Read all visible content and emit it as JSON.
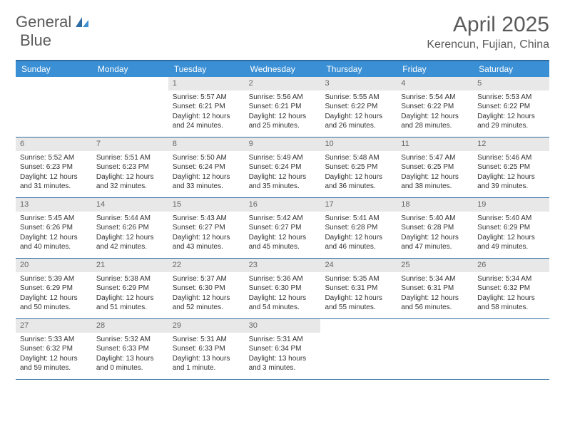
{
  "brand": {
    "word1": "General",
    "word2": "Blue"
  },
  "title": "April 2025",
  "location": "Kerencun, Fujian, China",
  "colors": {
    "header_bg": "#3b8fd4",
    "header_text": "#ffffff",
    "border": "#2d6ca2",
    "daynum_bg": "#e8e8e8",
    "daynum_text": "#666666",
    "body_text": "#333333",
    "title_text": "#5a5a5a",
    "brand_blue": "#3b7fc4"
  },
  "day_names": [
    "Sunday",
    "Monday",
    "Tuesday",
    "Wednesday",
    "Thursday",
    "Friday",
    "Saturday"
  ],
  "weeks": [
    [
      {
        "empty": true
      },
      {
        "empty": true
      },
      {
        "n": "1",
        "sunrise": "Sunrise: 5:57 AM",
        "sunset": "Sunset: 6:21 PM",
        "day1": "Daylight: 12 hours",
        "day2": "and 24 minutes."
      },
      {
        "n": "2",
        "sunrise": "Sunrise: 5:56 AM",
        "sunset": "Sunset: 6:21 PM",
        "day1": "Daylight: 12 hours",
        "day2": "and 25 minutes."
      },
      {
        "n": "3",
        "sunrise": "Sunrise: 5:55 AM",
        "sunset": "Sunset: 6:22 PM",
        "day1": "Daylight: 12 hours",
        "day2": "and 26 minutes."
      },
      {
        "n": "4",
        "sunrise": "Sunrise: 5:54 AM",
        "sunset": "Sunset: 6:22 PM",
        "day1": "Daylight: 12 hours",
        "day2": "and 28 minutes."
      },
      {
        "n": "5",
        "sunrise": "Sunrise: 5:53 AM",
        "sunset": "Sunset: 6:22 PM",
        "day1": "Daylight: 12 hours",
        "day2": "and 29 minutes."
      }
    ],
    [
      {
        "n": "6",
        "sunrise": "Sunrise: 5:52 AM",
        "sunset": "Sunset: 6:23 PM",
        "day1": "Daylight: 12 hours",
        "day2": "and 31 minutes."
      },
      {
        "n": "7",
        "sunrise": "Sunrise: 5:51 AM",
        "sunset": "Sunset: 6:23 PM",
        "day1": "Daylight: 12 hours",
        "day2": "and 32 minutes."
      },
      {
        "n": "8",
        "sunrise": "Sunrise: 5:50 AM",
        "sunset": "Sunset: 6:24 PM",
        "day1": "Daylight: 12 hours",
        "day2": "and 33 minutes."
      },
      {
        "n": "9",
        "sunrise": "Sunrise: 5:49 AM",
        "sunset": "Sunset: 6:24 PM",
        "day1": "Daylight: 12 hours",
        "day2": "and 35 minutes."
      },
      {
        "n": "10",
        "sunrise": "Sunrise: 5:48 AM",
        "sunset": "Sunset: 6:25 PM",
        "day1": "Daylight: 12 hours",
        "day2": "and 36 minutes."
      },
      {
        "n": "11",
        "sunrise": "Sunrise: 5:47 AM",
        "sunset": "Sunset: 6:25 PM",
        "day1": "Daylight: 12 hours",
        "day2": "and 38 minutes."
      },
      {
        "n": "12",
        "sunrise": "Sunrise: 5:46 AM",
        "sunset": "Sunset: 6:25 PM",
        "day1": "Daylight: 12 hours",
        "day2": "and 39 minutes."
      }
    ],
    [
      {
        "n": "13",
        "sunrise": "Sunrise: 5:45 AM",
        "sunset": "Sunset: 6:26 PM",
        "day1": "Daylight: 12 hours",
        "day2": "and 40 minutes."
      },
      {
        "n": "14",
        "sunrise": "Sunrise: 5:44 AM",
        "sunset": "Sunset: 6:26 PM",
        "day1": "Daylight: 12 hours",
        "day2": "and 42 minutes."
      },
      {
        "n": "15",
        "sunrise": "Sunrise: 5:43 AM",
        "sunset": "Sunset: 6:27 PM",
        "day1": "Daylight: 12 hours",
        "day2": "and 43 minutes."
      },
      {
        "n": "16",
        "sunrise": "Sunrise: 5:42 AM",
        "sunset": "Sunset: 6:27 PM",
        "day1": "Daylight: 12 hours",
        "day2": "and 45 minutes."
      },
      {
        "n": "17",
        "sunrise": "Sunrise: 5:41 AM",
        "sunset": "Sunset: 6:28 PM",
        "day1": "Daylight: 12 hours",
        "day2": "and 46 minutes."
      },
      {
        "n": "18",
        "sunrise": "Sunrise: 5:40 AM",
        "sunset": "Sunset: 6:28 PM",
        "day1": "Daylight: 12 hours",
        "day2": "and 47 minutes."
      },
      {
        "n": "19",
        "sunrise": "Sunrise: 5:40 AM",
        "sunset": "Sunset: 6:29 PM",
        "day1": "Daylight: 12 hours",
        "day2": "and 49 minutes."
      }
    ],
    [
      {
        "n": "20",
        "sunrise": "Sunrise: 5:39 AM",
        "sunset": "Sunset: 6:29 PM",
        "day1": "Daylight: 12 hours",
        "day2": "and 50 minutes."
      },
      {
        "n": "21",
        "sunrise": "Sunrise: 5:38 AM",
        "sunset": "Sunset: 6:29 PM",
        "day1": "Daylight: 12 hours",
        "day2": "and 51 minutes."
      },
      {
        "n": "22",
        "sunrise": "Sunrise: 5:37 AM",
        "sunset": "Sunset: 6:30 PM",
        "day1": "Daylight: 12 hours",
        "day2": "and 52 minutes."
      },
      {
        "n": "23",
        "sunrise": "Sunrise: 5:36 AM",
        "sunset": "Sunset: 6:30 PM",
        "day1": "Daylight: 12 hours",
        "day2": "and 54 minutes."
      },
      {
        "n": "24",
        "sunrise": "Sunrise: 5:35 AM",
        "sunset": "Sunset: 6:31 PM",
        "day1": "Daylight: 12 hours",
        "day2": "and 55 minutes."
      },
      {
        "n": "25",
        "sunrise": "Sunrise: 5:34 AM",
        "sunset": "Sunset: 6:31 PM",
        "day1": "Daylight: 12 hours",
        "day2": "and 56 minutes."
      },
      {
        "n": "26",
        "sunrise": "Sunrise: 5:34 AM",
        "sunset": "Sunset: 6:32 PM",
        "day1": "Daylight: 12 hours",
        "day2": "and 58 minutes."
      }
    ],
    [
      {
        "n": "27",
        "sunrise": "Sunrise: 5:33 AM",
        "sunset": "Sunset: 6:32 PM",
        "day1": "Daylight: 12 hours",
        "day2": "and 59 minutes."
      },
      {
        "n": "28",
        "sunrise": "Sunrise: 5:32 AM",
        "sunset": "Sunset: 6:33 PM",
        "day1": "Daylight: 13 hours",
        "day2": "and 0 minutes."
      },
      {
        "n": "29",
        "sunrise": "Sunrise: 5:31 AM",
        "sunset": "Sunset: 6:33 PM",
        "day1": "Daylight: 13 hours",
        "day2": "and 1 minute."
      },
      {
        "n": "30",
        "sunrise": "Sunrise: 5:31 AM",
        "sunset": "Sunset: 6:34 PM",
        "day1": "Daylight: 13 hours",
        "day2": "and 3 minutes."
      },
      {
        "empty": true
      },
      {
        "empty": true
      },
      {
        "empty": true
      }
    ]
  ]
}
